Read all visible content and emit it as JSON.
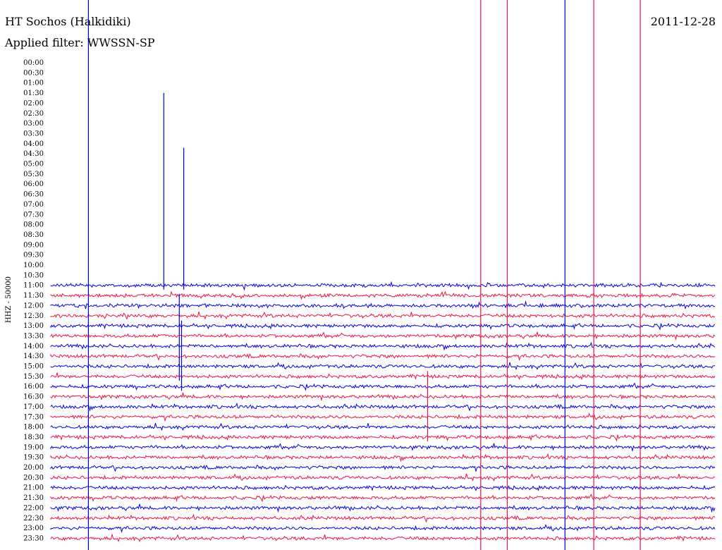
{
  "header": {
    "station": "HT Sochos (Halkidiki)",
    "date": "2011-12-28",
    "filter": "Applied filter: WWSSN-SP"
  },
  "chart_data": {
    "type": "line",
    "title": "HT Sochos (Halkidiki)",
    "date": "2011-12-28",
    "filter": "WWSSN-SP",
    "ylabel": "HHZ - 50000",
    "row_labels": [
      "00:00",
      "00:30",
      "01:00",
      "01:30",
      "02:00",
      "02:30",
      "03:00",
      "03:30",
      "04:00",
      "04:30",
      "05:00",
      "05:30",
      "06:00",
      "06:30",
      "07:00",
      "07:30",
      "08:00",
      "08:30",
      "09:00",
      "09:30",
      "10:00",
      "10:30",
      "11:00",
      "11:30",
      "12:00",
      "12:30",
      "13:00",
      "13:30",
      "14:00",
      "14:30",
      "15:00",
      "15:30",
      "16:00",
      "16:30",
      "17:00",
      "17:30",
      "18:00",
      "18:30",
      "19:00",
      "19:30",
      "20:00",
      "20:30",
      "21:00",
      "21:30",
      "22:00",
      "22:30",
      "23:00",
      "23:30"
    ],
    "first_trace_row": "11:00",
    "colors": {
      "odd_row": "#0000ee",
      "even_row": "#ee1144"
    },
    "events": [
      {
        "row": "11:00",
        "minute": 1.7,
        "amplitude": 1.0,
        "color": "blue"
      },
      {
        "row": "11:00",
        "minute": 5.1,
        "amplitude": 0.35,
        "color": "blue"
      },
      {
        "row": "11:00",
        "minute": 6.0,
        "amplitude": 0.25,
        "color": "blue"
      },
      {
        "row": "15:30",
        "minute": 5.8,
        "amplitude": 0.15,
        "color": "blue"
      },
      {
        "row": "16:00",
        "minute": 5.9,
        "amplitude": 0.12,
        "color": "blue"
      },
      {
        "row": "18:30",
        "minute": 17.0,
        "amplitude": 0.12,
        "color": "red"
      },
      {
        "row": "18:00",
        "minute": 19.4,
        "amplitude": 1.0,
        "color": "red"
      },
      {
        "row": "18:00",
        "minute": 20.6,
        "amplitude": 1.0,
        "color": "red"
      },
      {
        "row": "11:00",
        "minute": 23.2,
        "amplitude": 1.0,
        "color": "blue"
      },
      {
        "row": "11:00",
        "minute": 24.5,
        "amplitude": 1.0,
        "color": "red"
      },
      {
        "row": "11:00",
        "minute": 26.6,
        "amplitude": 1.0,
        "color": "red"
      }
    ]
  }
}
